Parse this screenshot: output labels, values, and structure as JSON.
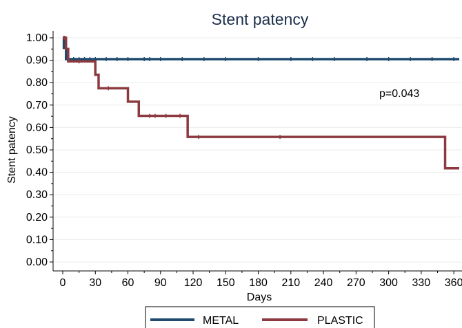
{
  "chart_data": {
    "type": "line",
    "title": "Stent patency",
    "xlabel": "Days",
    "ylabel": "Stent patency",
    "xlim": [
      0,
      365
    ],
    "ylim": [
      0,
      1
    ],
    "xticks": [
      0,
      30,
      60,
      90,
      120,
      150,
      180,
      210,
      240,
      270,
      300,
      330,
      360
    ],
    "xtick_labels": [
      "0",
      "30",
      "60",
      "90",
      "120",
      "150",
      "180",
      "210",
      "240",
      "270",
      "300",
      "330",
      "360"
    ],
    "yticks": [
      0,
      0.1,
      0.2,
      0.3,
      0.4,
      0.5,
      0.6,
      0.7,
      0.8,
      0.9,
      1.0
    ],
    "ytick_labels": [
      "0.00",
      "0.10",
      "0.20",
      "0.30",
      "0.40",
      "0.50",
      "0.60",
      "0.70",
      "0.80",
      "0.90",
      "1.00"
    ],
    "grid": true,
    "annotation": "p=0.043",
    "legend_position": "bottom",
    "series": [
      {
        "name": "METAL",
        "color": "#1f4a6e",
        "steps": [
          [
            0,
            1.0
          ],
          [
            1,
            0.955
          ],
          [
            3,
            0.905
          ],
          [
            365,
            0.905
          ]
        ],
        "censored": [
          5,
          10,
          15,
          20,
          25,
          30,
          40,
          50,
          60,
          75,
          80,
          90,
          110,
          130,
          150,
          180,
          210,
          230,
          250,
          280,
          300,
          320,
          340,
          360
        ]
      },
      {
        "name": "PLASTIC",
        "color": "#8c3a3f",
        "steps": [
          [
            0,
            1.0
          ],
          [
            3,
            0.95
          ],
          [
            5,
            0.895
          ],
          [
            30,
            0.835
          ],
          [
            33,
            0.775
          ],
          [
            60,
            0.715
          ],
          [
            70,
            0.652
          ],
          [
            115,
            0.558
          ],
          [
            352,
            0.418
          ],
          [
            365,
            0.418
          ]
        ],
        "censored": [
          1,
          2,
          15,
          42,
          80,
          85,
          95,
          108,
          125,
          200
        ]
      }
    ]
  }
}
